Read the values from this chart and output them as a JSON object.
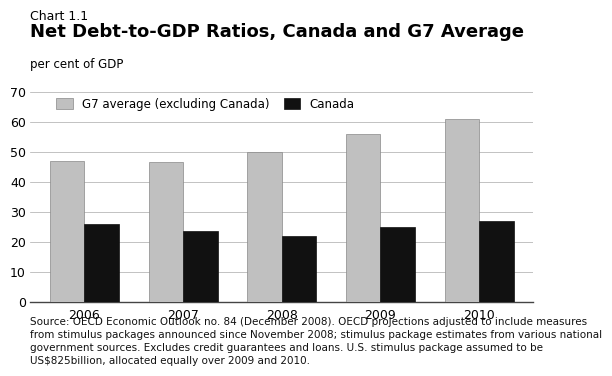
{
  "chart_label": "Chart 1.1",
  "title": "Net Debt-to-GDP Ratios, Canada and G7 Average",
  "ylabel": "per cent of GDP",
  "years": [
    2006,
    2007,
    2008,
    2009,
    2010
  ],
  "g7_values": [
    47,
    46.5,
    50,
    56,
    61
  ],
  "canada_values": [
    26,
    23.5,
    22,
    25,
    27
  ],
  "g7_color": "#c0c0c0",
  "canada_color": "#111111",
  "ylim": [
    0,
    70
  ],
  "yticks": [
    0,
    10,
    20,
    30,
    40,
    50,
    60,
    70
  ],
  "legend_g7": "G7 average (excluding Canada)",
  "legend_canada": "Canada",
  "source_text": "Source: OECD Economic Outlook no. 84 (December 2008). OECD projections adjusted to include measures\nfrom stimulus packages announced since November 2008; stimulus package estimates from various national\ngovernment sources. Excludes credit guarantees and loans. U.S. stimulus package assumed to be\nUS$825billion, allocated equally over 2009 and 2010.",
  "bar_width": 0.35,
  "background_color": "#ffffff",
  "grid_color": "#aaaaaa",
  "chart_label_fontsize": 9,
  "title_fontsize": 13,
  "ylabel_fontsize": 8.5,
  "tick_fontsize": 9,
  "legend_fontsize": 8.5,
  "source_fontsize": 7.5,
  "g7_edgecolor": "#888888",
  "canada_edgecolor": "#111111"
}
